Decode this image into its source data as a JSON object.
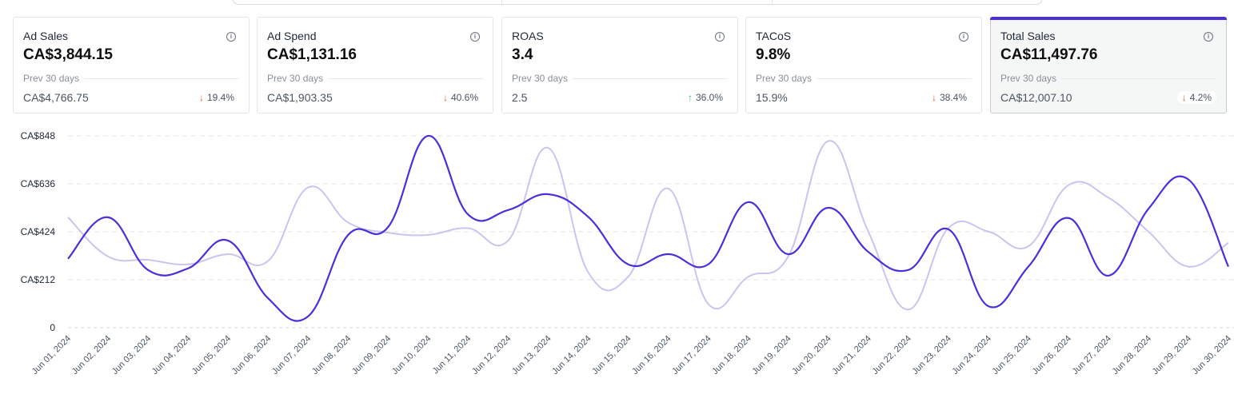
{
  "cards": [
    {
      "title": "Ad Sales",
      "value": "CA$3,844.15",
      "prev_label": "Prev 30 days",
      "prev_value": "CA$4,766.75",
      "change": "19.4%",
      "direction": "down",
      "active": false
    },
    {
      "title": "Ad Spend",
      "value": "CA$1,131.16",
      "prev_label": "Prev 30 days",
      "prev_value": "CA$1,903.35",
      "change": "40.6%",
      "direction": "down",
      "active": false
    },
    {
      "title": "ROAS",
      "value": "3.4",
      "prev_label": "Prev 30 days",
      "prev_value": "2.5",
      "change": "36.0%",
      "direction": "up",
      "active": false
    },
    {
      "title": "TACoS",
      "value": "9.8%",
      "prev_label": "Prev 30 days",
      "prev_value": "15.9%",
      "change": "38.4%",
      "direction": "down",
      "active": false
    },
    {
      "title": "Total Sales",
      "value": "CA$11,497.76",
      "prev_label": "Prev 30 days",
      "prev_value": "CA$12,007.10",
      "change": "4.2%",
      "direction": "down",
      "active": true
    }
  ],
  "colors": {
    "primary": "#4a30d9",
    "secondary": "#cbc4f0",
    "down": "#e5533d",
    "up": "#2fb37a",
    "accent_bar": "#4a30d9"
  },
  "chart_data": {
    "type": "line",
    "x": [
      "Jun 01, 2024",
      "Jun 02, 2024",
      "Jun 03, 2024",
      "Jun 04, 2024",
      "Jun 05, 2024",
      "Jun 06, 2024",
      "Jun 07, 2024",
      "Jun 08, 2024",
      "Jun 09, 2024",
      "Jun 10, 2024",
      "Jun 11, 2024",
      "Jun 12, 2024",
      "Jun 13, 2024",
      "Jun 14, 2024",
      "Jun 15, 2024",
      "Jun 16, 2024",
      "Jun 17, 2024",
      "Jun 18, 2024",
      "Jun 19, 2024",
      "Jun 20, 2024",
      "Jun 21, 2024",
      "Jun 22, 2024",
      "Jun 23, 2024",
      "Jun 24, 2024",
      "Jun 25, 2024",
      "Jun 26, 2024",
      "Jun 27, 2024",
      "Jun 28, 2024",
      "Jun 29, 2024",
      "Jun 30, 2024"
    ],
    "series": [
      {
        "values": [
          305,
          488,
          255,
          262,
          385,
          130,
          50,
          410,
          445,
          848,
          500,
          520,
          590,
          490,
          280,
          325,
          280,
          555,
          325,
          530,
          335,
          255,
          435,
          95,
          270,
          485,
          230,
          525,
          655,
          270
        ]
      },
      {
        "values": [
          488,
          315,
          300,
          280,
          325,
          295,
          620,
          465,
          420,
          410,
          440,
          385,
          795,
          245,
          225,
          615,
          105,
          225,
          315,
          825,
          425,
          80,
          440,
          425,
          360,
          630,
          575,
          425,
          270,
          375
        ]
      }
    ],
    "yticks": [
      "0",
      "CA$212",
      "CA$424",
      "CA$636",
      "CA$848"
    ],
    "ytick_values": [
      0,
      212,
      424,
      636,
      848
    ],
    "ylim": [
      0,
      848
    ],
    "grid": true
  }
}
